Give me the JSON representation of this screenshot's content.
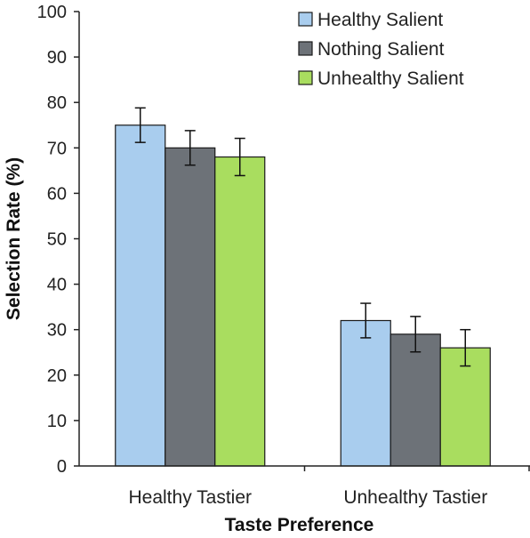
{
  "chart_data": {
    "type": "bar",
    "xlabel": "Taste Preference",
    "ylabel": "Selection Rate (%)",
    "ylim": [
      0,
      100
    ],
    "yticks": [
      0,
      10,
      20,
      30,
      40,
      50,
      60,
      70,
      80,
      90,
      100
    ],
    "categories": [
      "Healthy Tastier",
      "Unhealthy Tastier"
    ],
    "series": [
      {
        "name": "Healthy Salient",
        "color": "#a9cdee",
        "values": [
          75,
          32
        ],
        "error": [
          3.8,
          3.8
        ]
      },
      {
        "name": "Nothing Salient",
        "color": "#6d7278",
        "values": [
          70,
          29
        ],
        "error": [
          3.8,
          3.9
        ]
      },
      {
        "name": "Unhealthy Salient",
        "color": "#a9dd5f",
        "values": [
          68,
          26
        ],
        "error": [
          4.1,
          4.0
        ]
      }
    ],
    "error_bars": true,
    "grid": false,
    "legend_position": "top-right"
  }
}
